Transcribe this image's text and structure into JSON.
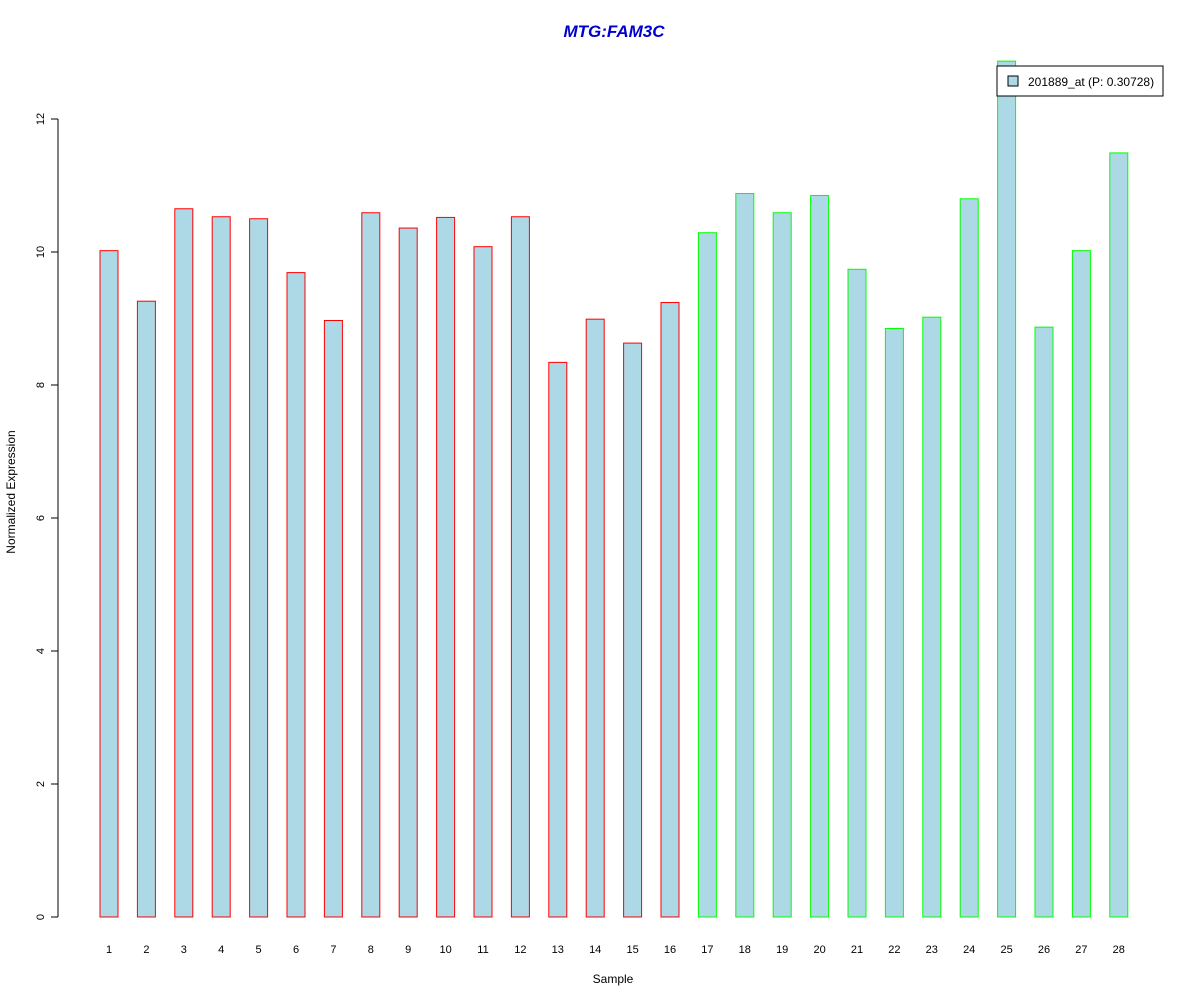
{
  "chart_data": {
    "type": "bar",
    "title": "MTG:FAM3C",
    "title_color": "#0000CC",
    "xlabel": "Sample",
    "ylabel": "Normalized Expression",
    "ylim": [
      0,
      12
    ],
    "yticks": [
      0,
      2,
      4,
      6,
      8,
      10,
      12
    ],
    "grid": false,
    "legend_position": "top-right",
    "fill_color": "#ADD8E6",
    "categories": [
      "1",
      "2",
      "3",
      "4",
      "5",
      "6",
      "7",
      "8",
      "9",
      "10",
      "11",
      "12",
      "13",
      "14",
      "15",
      "16",
      "17",
      "18",
      "19",
      "20",
      "21",
      "22",
      "23",
      "24",
      "25",
      "26",
      "27",
      "28"
    ],
    "series": [
      {
        "name": "201889_at (P: 0.30728)",
        "values": [
          10.02,
          9.26,
          10.65,
          10.53,
          10.5,
          9.69,
          8.97,
          10.59,
          10.36,
          10.52,
          10.08,
          10.53,
          8.34,
          8.99,
          8.63,
          9.24,
          10.29,
          10.88,
          10.59,
          10.85,
          9.74,
          8.85,
          9.02,
          10.8,
          12.87,
          8.87,
          10.02,
          11.49
        ]
      }
    ],
    "group_colors": {
      "group_1": "#FF0000",
      "group_2": "#00FF00"
    },
    "bar_border_colors": [
      "#FF0000",
      "#FF0000",
      "#FF0000",
      "#FF0000",
      "#FF0000",
      "#FF0000",
      "#FF0000",
      "#FF0000",
      "#FF0000",
      "#FF0000",
      "#FF0000",
      "#FF0000",
      "#FF0000",
      "#FF0000",
      "#FF0000",
      "#FF0000",
      "#00FF00",
      "#00FF00",
      "#00FF00",
      "#00FF00",
      "#00FF00",
      "#00FF00",
      "#00FF00",
      "#00FF00",
      "#00FF00",
      "#00FF00",
      "#00FF00",
      "#00FF00"
    ]
  }
}
